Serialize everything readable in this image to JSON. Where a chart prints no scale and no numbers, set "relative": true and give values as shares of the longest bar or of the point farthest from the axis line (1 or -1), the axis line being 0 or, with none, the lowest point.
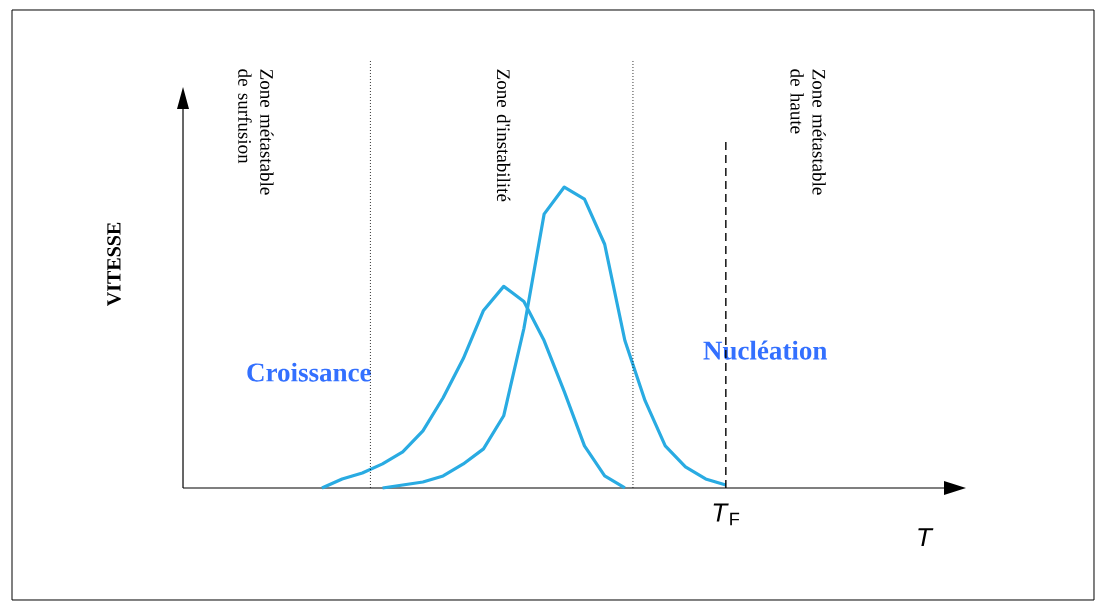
{
  "chart_data": {
    "type": "line",
    "relative": true,
    "categories": [
      null,
      null,
      null,
      null,
      null,
      null,
      null,
      null,
      null,
      null,
      null,
      null,
      null,
      null,
      null,
      null,
      null,
      null,
      null,
      null,
      null
    ],
    "series": [
      {
        "name": "Croissance",
        "color": "#29abe2",
        "values": [
          0,
          0.03,
          0.05,
          0.08,
          0.12,
          0.19,
          0.3,
          0.43,
          0.59,
          0.67,
          0.62,
          0.49,
          0.32,
          0.14,
          0.04,
          0,
          null,
          null,
          null,
          null,
          null
        ]
      },
      {
        "name": "Nucléation",
        "color": "#29abe2",
        "values": [
          null,
          null,
          null,
          0,
          0.01,
          0.02,
          0.04,
          0.08,
          0.13,
          0.24,
          0.53,
          0.91,
          1,
          0.96,
          0.81,
          0.49,
          0.29,
          0.14,
          0.07,
          0.03,
          0.01
        ]
      }
    ],
    "annotations": [
      "Zone métastable de surfusion",
      "Zone d'instabilité",
      "Zone métastable de haute",
      "*T*$_{F}$",
      "*T*",
      "VITESSE"
    ],
    "marker": "none",
    "line_style": "solid"
  }
}
